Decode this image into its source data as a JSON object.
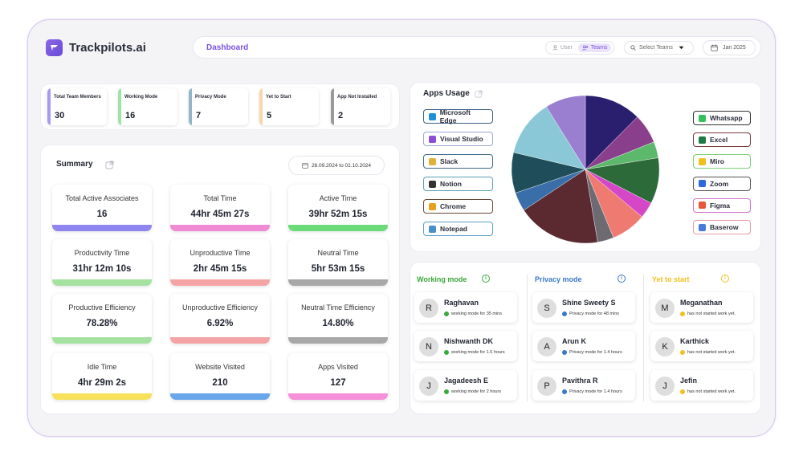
{
  "app": {
    "name": "Trackpilots.ai"
  },
  "header": {
    "title": "Dashboard",
    "toggle": {
      "user": "User",
      "teams": "Teams"
    },
    "select_teams": "Select Teams",
    "date": "Jan 2025"
  },
  "stats": [
    {
      "label": "Total Team Members",
      "value": "30",
      "color": "#a79af2"
    },
    {
      "label": "Working Mode",
      "value": "16",
      "color": "#9fe3a8"
    },
    {
      "label": "Privacy Mode",
      "value": "7",
      "color": "#8fb7c6"
    },
    {
      "label": "Yet to Start",
      "value": "5",
      "color": "#f7d7a8"
    },
    {
      "label": "App Not Installed",
      "value": "2",
      "color": "#9a9a9a"
    }
  ],
  "summary": {
    "title": "Summary",
    "date_range": "28.09.2024 to 01.10.2024",
    "cards": [
      {
        "label": "Total Active Associates",
        "value": "16",
        "color": "#8f85ee"
      },
      {
        "label": "Total Time",
        "value": "44hr 45m 27s",
        "color": "#f08ad4"
      },
      {
        "label": "Active Time",
        "value": "39hr 52m 15s",
        "color": "#6bdb7a"
      },
      {
        "label": "Productivity Time",
        "value": "31hr 12m 10s",
        "color": "#a5e2a0"
      },
      {
        "label": "Unproductive Time",
        "value": "2hr 45m 15s",
        "color": "#f4a4a4"
      },
      {
        "label": "Neutral Time",
        "value": "5hr 53m 15s",
        "color": "#a8a8a8"
      },
      {
        "label": "Productive Efficiency",
        "value": "78.28%",
        "color": "#a5e2a0"
      },
      {
        "label": "Unproductive Efficiency",
        "value": "6.92%",
        "color": "#f4a4a4"
      },
      {
        "label": "Neutral Time Efficiency",
        "value": "14.80%",
        "color": "#a8a8a8"
      },
      {
        "label": "Idle Time",
        "value": "4hr 29m 2s",
        "color": "#f7e05a"
      },
      {
        "label": "Website Visited",
        "value": "210",
        "color": "#6aa6ea"
      },
      {
        "label": "Apps Visited",
        "value": "127",
        "color": "#f58fd8"
      }
    ]
  },
  "apps_usage": {
    "title": "Apps Usage",
    "left_apps": [
      {
        "name": "Microsoft Edge",
        "icon": "edge-icon",
        "color": "#1f8fd8",
        "border": "#3a5f86"
      },
      {
        "name": "Visual Studio",
        "icon": "visual-studio-icon",
        "color": "#8a4fd6",
        "border": "#9aa8d8"
      },
      {
        "name": "Slack",
        "icon": "slack-icon",
        "color": "#e0b03a",
        "border": "#3a6a8a"
      },
      {
        "name": "Notion",
        "icon": "notion-icon",
        "color": "#333333",
        "border": "#5aa0b8"
      },
      {
        "name": "Chrome",
        "icon": "chrome-icon",
        "color": "#e8a020",
        "border": "#6a4a3a"
      },
      {
        "name": "Notepad",
        "icon": "notepad-icon",
        "color": "#4a90c8",
        "border": "#5aa0c8"
      }
    ],
    "right_apps": [
      {
        "name": "Whatsapp",
        "icon": "whatsapp-icon",
        "color": "#36c05a",
        "border": "#333333"
      },
      {
        "name": "Excel",
        "icon": "excel-icon",
        "color": "#1e7a44",
        "border": "#7a3a3a"
      },
      {
        "name": "Miro",
        "icon": "miro-icon",
        "color": "#f0c020",
        "border": "#7acf7a"
      },
      {
        "name": "Zoom",
        "icon": "zoom-icon",
        "color": "#2d6ad8",
        "border": "#555555"
      },
      {
        "name": "Figma",
        "icon": "figma-icon",
        "color": "#e8553a",
        "border": "#d070c8"
      },
      {
        "name": "Baserow",
        "icon": "baserow-icon",
        "color": "#4a7ad8",
        "border": "#e89aa0"
      }
    ],
    "pie_slices": [
      {
        "value": 42,
        "color": "#2a1f6e"
      },
      {
        "value": 22,
        "color": "#8a3f8c"
      },
      {
        "value": 12,
        "color": "#5cb86a"
      },
      {
        "value": 34,
        "color": "#2d6a3a"
      },
      {
        "value": 12,
        "color": "#d448c8"
      },
      {
        "value": 26,
        "color": "#ef7a72"
      },
      {
        "value": 12,
        "color": "#6e6a72"
      },
      {
        "value": 62,
        "color": "#5a2a30"
      },
      {
        "value": 14,
        "color": "#3a6ea8"
      },
      {
        "value": 30,
        "color": "#1f4e5a"
      },
      {
        "value": 42,
        "color": "#8ac8d8"
      },
      {
        "value": 30,
        "color": "#9a7ed0"
      }
    ]
  },
  "modes": {
    "working": {
      "title": "Working mode",
      "color": "#3aa83a",
      "people": [
        {
          "initial": "R",
          "name": "Raghavan",
          "status": "working mode for 35 mins"
        },
        {
          "initial": "N",
          "name": "Nishwanth DK",
          "status": "working mode for 1.5 hours"
        },
        {
          "initial": "J",
          "name": "Jagadeesh E",
          "status": "working mode for 2 hours"
        }
      ]
    },
    "privacy": {
      "title": "Privacy mode",
      "color": "#3a78c8",
      "people": [
        {
          "initial": "S",
          "name": "Shine Sweety S",
          "status": "Privacy mode for 48 mins"
        },
        {
          "initial": "A",
          "name": "Arun K",
          "status": "Privacy mode for 1.4 hours"
        },
        {
          "initial": "P",
          "name": "Pavithra R",
          "status": "Privacy mode for 1.4 hours"
        }
      ]
    },
    "yet": {
      "title": "Yet to start",
      "color": "#f0c020",
      "people": [
        {
          "initial": "M",
          "name": "Meganathan",
          "status": "has not started work yet."
        },
        {
          "initial": "K",
          "name": "Karthick",
          "status": "has not started work yet."
        },
        {
          "initial": "J",
          "name": "Jefin",
          "status": "has not started work yet."
        }
      ]
    }
  }
}
